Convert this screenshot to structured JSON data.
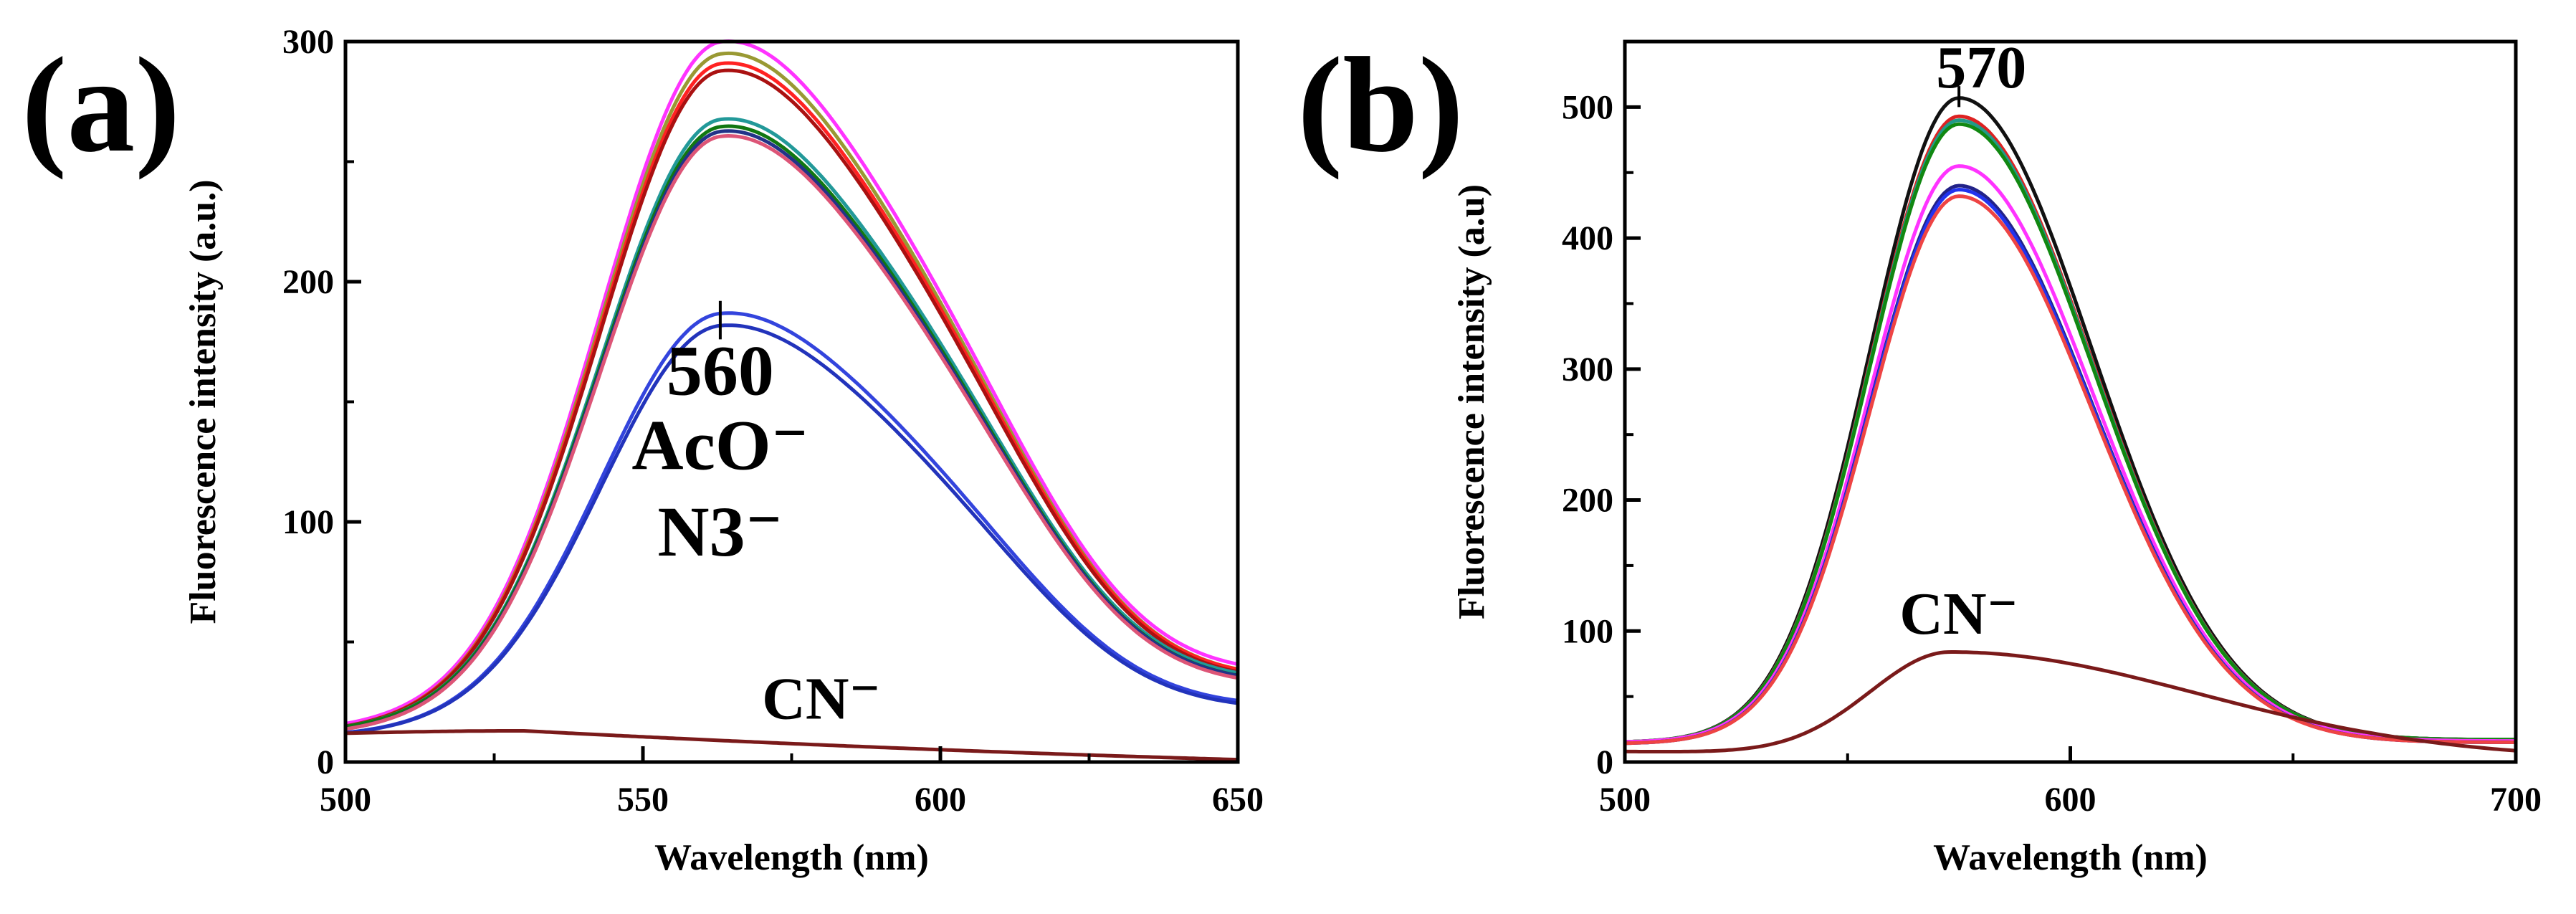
{
  "chart_data": [
    {
      "type": "line",
      "panel_label": "(a)",
      "xlabel": "Wavelength (nm)",
      "ylabel": "Fluorescence intensity (a.u.)",
      "xlim": [
        500,
        650
      ],
      "ylim": [
        0,
        300
      ],
      "x_ticks": [
        "500",
        "550",
        "600",
        "650"
      ],
      "y_ticks": [
        "0",
        "100",
        "200",
        "300"
      ],
      "annotations": [
        {
          "lines": [
            "560"
          ],
          "x": 563,
          "y": 153
        },
        {
          "lines": [
            "AcO⁻"
          ],
          "x": 563,
          "y": 122
        },
        {
          "lines": [
            "N3⁻"
          ],
          "x": 563,
          "y": 86
        },
        {
          "lines": [
            "CN⁻"
          ],
          "x": 580,
          "y": 18
        }
      ],
      "series": [
        {
          "name": "magenta",
          "color": "#ff33ff",
          "kind": "main",
          "peak_x": 563,
          "peak": 297,
          "base": 14,
          "end": 35,
          "shoulder": 175
        },
        {
          "name": "olive",
          "color": "#999933",
          "kind": "main",
          "peak_x": 563,
          "peak": 292,
          "base": 13,
          "end": 33,
          "shoulder": 170
        },
        {
          "name": "red",
          "color": "#ff2222",
          "kind": "main",
          "peak_x": 563,
          "peak": 288,
          "base": 13,
          "end": 33,
          "shoulder": 168
        },
        {
          "name": "darkred",
          "color": "#aa1111",
          "kind": "main",
          "peak_x": 563,
          "peak": 285,
          "base": 13,
          "end": 32,
          "shoulder": 166
        },
        {
          "name": "teal",
          "color": "#229999",
          "kind": "main",
          "peak_x": 563,
          "peak": 265,
          "base": 13,
          "end": 32,
          "shoulder": 158
        },
        {
          "name": "green",
          "color": "#117711",
          "kind": "main",
          "peak_x": 563,
          "peak": 262,
          "base": 13,
          "end": 31,
          "shoulder": 156
        },
        {
          "name": "navy",
          "color": "#223388",
          "kind": "main",
          "peak_x": 563,
          "peak": 260,
          "base": 12,
          "end": 31,
          "shoulder": 154
        },
        {
          "name": "pink",
          "color": "#dd5577",
          "kind": "main",
          "peak_x": 563,
          "peak": 258,
          "base": 12,
          "end": 30,
          "shoulder": 152
        },
        {
          "name": "AcO⁻",
          "color": "#3344dd",
          "kind": "main",
          "peak_x": 563,
          "peak": 185,
          "base": 11,
          "end": 22,
          "shoulder": 106
        },
        {
          "name": "N3⁻",
          "color": "#2233bb",
          "kind": "main",
          "peak_x": 563,
          "peak": 180,
          "base": 11,
          "end": 21,
          "shoulder": 103
        },
        {
          "name": "CN⁻",
          "color": "#7a1a1a",
          "kind": "flat",
          "peak_x": 530,
          "peak": 13,
          "base": 12,
          "end": 1
        }
      ]
    },
    {
      "type": "line",
      "panel_label": "(b)",
      "xlabel": "Wavelength (nm)",
      "ylabel": "Fluorescence intensity (a.u)",
      "xlim": [
        500,
        700
      ],
      "ylim": [
        0,
        550
      ],
      "x_ticks": [
        "500",
        "600",
        "700"
      ],
      "y_ticks": [
        "0",
        "100",
        "200",
        "300",
        "400",
        "500"
      ],
      "annotations": [
        {
          "lines": [
            "570"
          ],
          "x": 580,
          "y": 515
        },
        {
          "lines": [
            "CN⁻"
          ],
          "x": 575,
          "y": 98
        }
      ],
      "series": [
        {
          "name": "black",
          "color": "#111111",
          "kind": "main",
          "peak_x": 575,
          "peak": 507,
          "base": 15,
          "end": 17
        },
        {
          "name": "red",
          "color": "#dd2222",
          "kind": "main",
          "peak_x": 575,
          "peak": 493,
          "base": 15,
          "end": 17
        },
        {
          "name": "teal",
          "color": "#229988",
          "kind": "main",
          "peak_x": 575,
          "peak": 490,
          "base": 15,
          "end": 17
        },
        {
          "name": "green",
          "color": "#118811",
          "kind": "main",
          "peak_x": 575,
          "peak": 487,
          "base": 15,
          "end": 17
        },
        {
          "name": "magenta",
          "color": "#ff33ff",
          "kind": "main",
          "peak_x": 575,
          "peak": 455,
          "base": 15,
          "end": 16
        },
        {
          "name": "navy",
          "color": "#222288",
          "kind": "main",
          "peak_x": 575,
          "peak": 440,
          "base": 14,
          "end": 15
        },
        {
          "name": "blue",
          "color": "#2233ee",
          "kind": "main",
          "peak_x": 575,
          "peak": 437,
          "base": 14,
          "end": 15
        },
        {
          "name": "salmon",
          "color": "#ee4444",
          "kind": "main",
          "peak_x": 575,
          "peak": 432,
          "base": 14,
          "end": 15
        },
        {
          "name": "CN⁻",
          "color": "#7a1a1a",
          "kind": "small",
          "peak_x": 573,
          "peak": 84,
          "base": 8,
          "end": 3
        }
      ]
    }
  ]
}
